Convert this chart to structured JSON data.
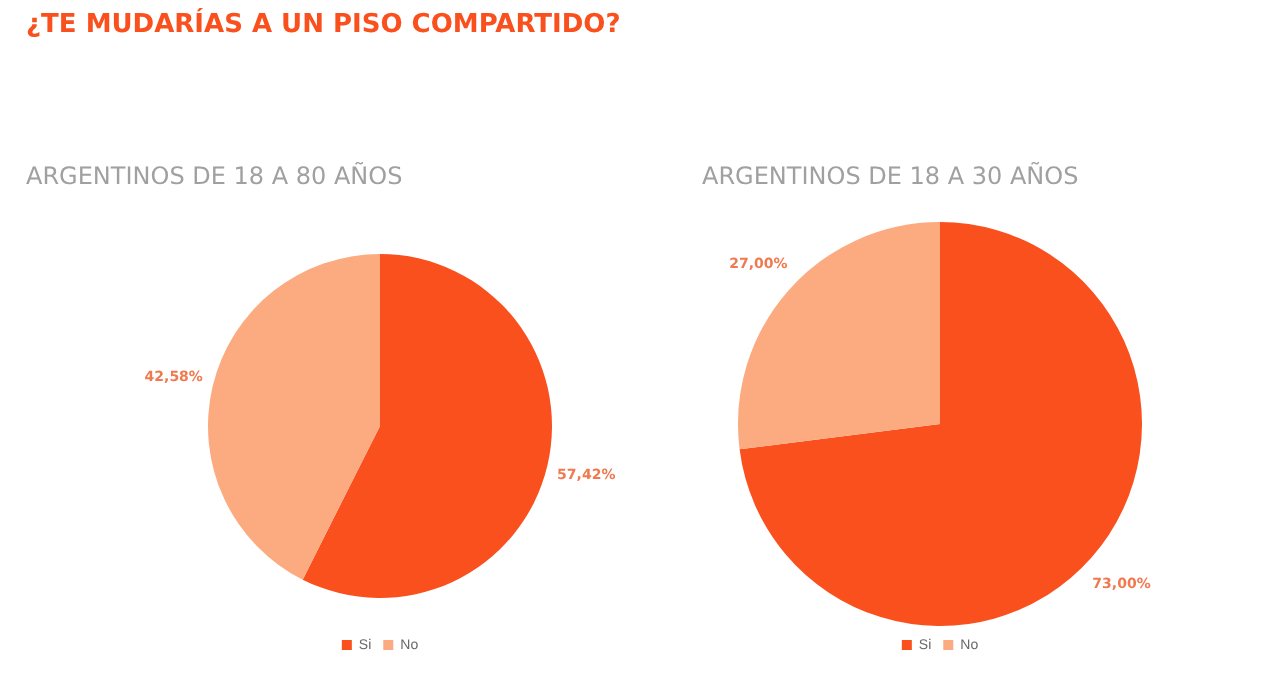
{
  "chart_data": [
    {
      "type": "pie",
      "title": "¿TE MUDARÍAS A UN PISO COMPARTIDO?",
      "subtitle": "ARGENTINOS DE 18 A 80 AÑOS",
      "categories": [
        "Si",
        "No"
      ],
      "values": [
        57.42,
        42.58
      ],
      "value_labels": [
        "57,42%",
        "42,58%"
      ],
      "colors": [
        "#f9501e",
        "#fcaa80"
      ],
      "legend": "bottom"
    },
    {
      "type": "pie",
      "title": "ARGENTINOS DE 18 A 30 AÑOS",
      "categories": [
        "Si",
        "No"
      ],
      "values": [
        73.0,
        27.0
      ],
      "value_labels": [
        "73,00%",
        "27,00%"
      ],
      "colors": [
        "#f9501e",
        "#fcaa80"
      ],
      "legend": "bottom"
    }
  ]
}
